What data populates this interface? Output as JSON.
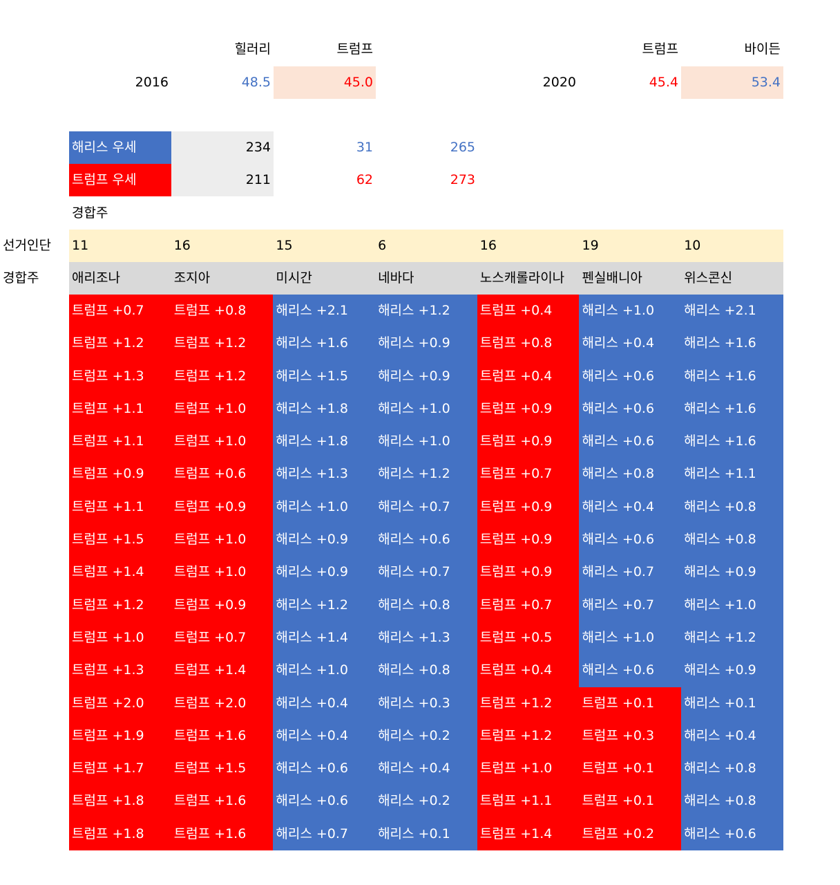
{
  "summary_2016": {
    "header_hillary": "힐러리",
    "header_trump": "트럼프",
    "year": "2016",
    "hillary": "48.5",
    "trump": "45.0"
  },
  "summary_2020": {
    "header_trump": "트럼프",
    "header_biden": "바이든",
    "year": "2020",
    "trump": "45.4",
    "biden": "53.4"
  },
  "lead": {
    "harris_label": "해리스 우세",
    "harris_base": "234",
    "harris_add": "31",
    "harris_total": "265",
    "trump_label": "트럼프 우세",
    "trump_base": "211",
    "trump_add": "62",
    "trump_total": "273",
    "swing_caption": "경합주"
  },
  "electoral_row_label": "선거인단",
  "state_row_label": "경합주",
  "states": [
    {
      "name": "애리조나",
      "ev": "11"
    },
    {
      "name": "조지아",
      "ev": "16"
    },
    {
      "name": "미시간",
      "ev": "15"
    },
    {
      "name": "네바다",
      "ev": "6"
    },
    {
      "name": "노스캐롤라이나",
      "ev": "16"
    },
    {
      "name": "펜실배니아",
      "ev": "19"
    },
    {
      "name": "위스콘신",
      "ev": "10"
    }
  ],
  "colors": {
    "harris": "#4472C4",
    "trump": "#FF0000",
    "peach": "#FCE4D6",
    "ev_row": "#FFF2CC",
    "state_row": "#D9D9D9"
  },
  "rows": [
    [
      "트럼프 +0.7",
      "트럼프 +0.8",
      "해리스 +2.1",
      "해리스 +1.2",
      "트럼프 +0.4",
      "해리스 +1.0",
      "해리스 +2.1"
    ],
    [
      "트럼프 +1.2",
      "트럼프 +1.2",
      "해리스 +1.6",
      "해리스 +0.9",
      "트럼프 +0.8",
      "해리스 +0.4",
      "해리스 +1.6"
    ],
    [
      "트럼프 +1.3",
      "트럼프 +1.2",
      "해리스 +1.5",
      "해리스 +0.9",
      "트럼프 +0.4",
      "해리스 +0.6",
      "해리스 +1.6"
    ],
    [
      "트럼프 +1.1",
      "트럼프 +1.0",
      "해리스 +1.8",
      "해리스 +1.0",
      "트럼프 +0.9",
      "해리스 +0.6",
      "해리스 +1.6"
    ],
    [
      "트럼프 +1.1",
      "트럼프 +1.0",
      "해리스 +1.8",
      "해리스 +1.0",
      "트럼프 +0.9",
      "해리스 +0.6",
      "해리스 +1.6"
    ],
    [
      "트럼프 +0.9",
      "트럼프 +0.6",
      "해리스 +1.3",
      "해리스 +1.2",
      "트럼프 +0.7",
      "해리스 +0.8",
      "해리스 +1.1"
    ],
    [
      "트럼프 +1.1",
      "트럼프 +0.9",
      "해리스 +1.0",
      "해리스 +0.7",
      "트럼프 +0.9",
      "해리스 +0.4",
      "해리스 +0.8"
    ],
    [
      "트럼프 +1.5",
      "트럼프 +1.0",
      "해리스 +0.9",
      "해리스 +0.6",
      "트럼프 +0.9",
      "해리스 +0.6",
      "해리스 +0.8"
    ],
    [
      "트럼프 +1.4",
      "트럼프 +1.0",
      "해리스 +0.9",
      "해리스 +0.7",
      "트럼프 +0.9",
      "해리스 +0.7",
      "해리스 +0.9"
    ],
    [
      "트럼프 +1.2",
      "트럼프 +0.9",
      "해리스 +1.2",
      "해리스 +0.8",
      "트럼프 +0.7",
      "해리스 +0.7",
      "해리스 +1.0"
    ],
    [
      "트럼프 +1.0",
      "트럼프 +0.7",
      "해리스 +1.4",
      "해리스 +1.3",
      "트럼프 +0.5",
      "해리스 +1.0",
      "해리스 +1.2"
    ],
    [
      "트럼프 +1.3",
      "트럼프 +1.4",
      "해리스 +1.0",
      "해리스 +0.8",
      "트럼프 +0.4",
      "해리스 +0.6",
      "해리스 +0.9"
    ],
    [
      "트럼프 +2.0",
      "트럼프 +2.0",
      "해리스 +0.4",
      "해리스 +0.3",
      "트럼프 +1.2",
      "트럼프 +0.1",
      "해리스 +0.1"
    ],
    [
      "트럼프 +1.9",
      "트럼프 +1.6",
      "해리스 +0.4",
      "해리스 +0.2",
      "트럼프 +1.2",
      "트럼프 +0.3",
      "해리스 +0.4"
    ],
    [
      "트럼프 +1.7",
      "트럼프 +1.5",
      "해리스 +0.6",
      "해리스 +0.4",
      "트럼프 +1.0",
      "트럼프 +0.1",
      "해리스 +0.8"
    ],
    [
      "트럼프 +1.8",
      "트럼프 +1.6",
      "해리스 +0.6",
      "해리스 +0.2",
      "트럼프 +1.1",
      "트럼프 +0.1",
      "해리스 +0.8"
    ],
    [
      "트럼프 +1.8",
      "트럼프 +1.6",
      "해리스 +0.7",
      "해리스 +0.1",
      "트럼프 +1.4",
      "트럼프 +0.2",
      "해리스 +0.6"
    ]
  ]
}
